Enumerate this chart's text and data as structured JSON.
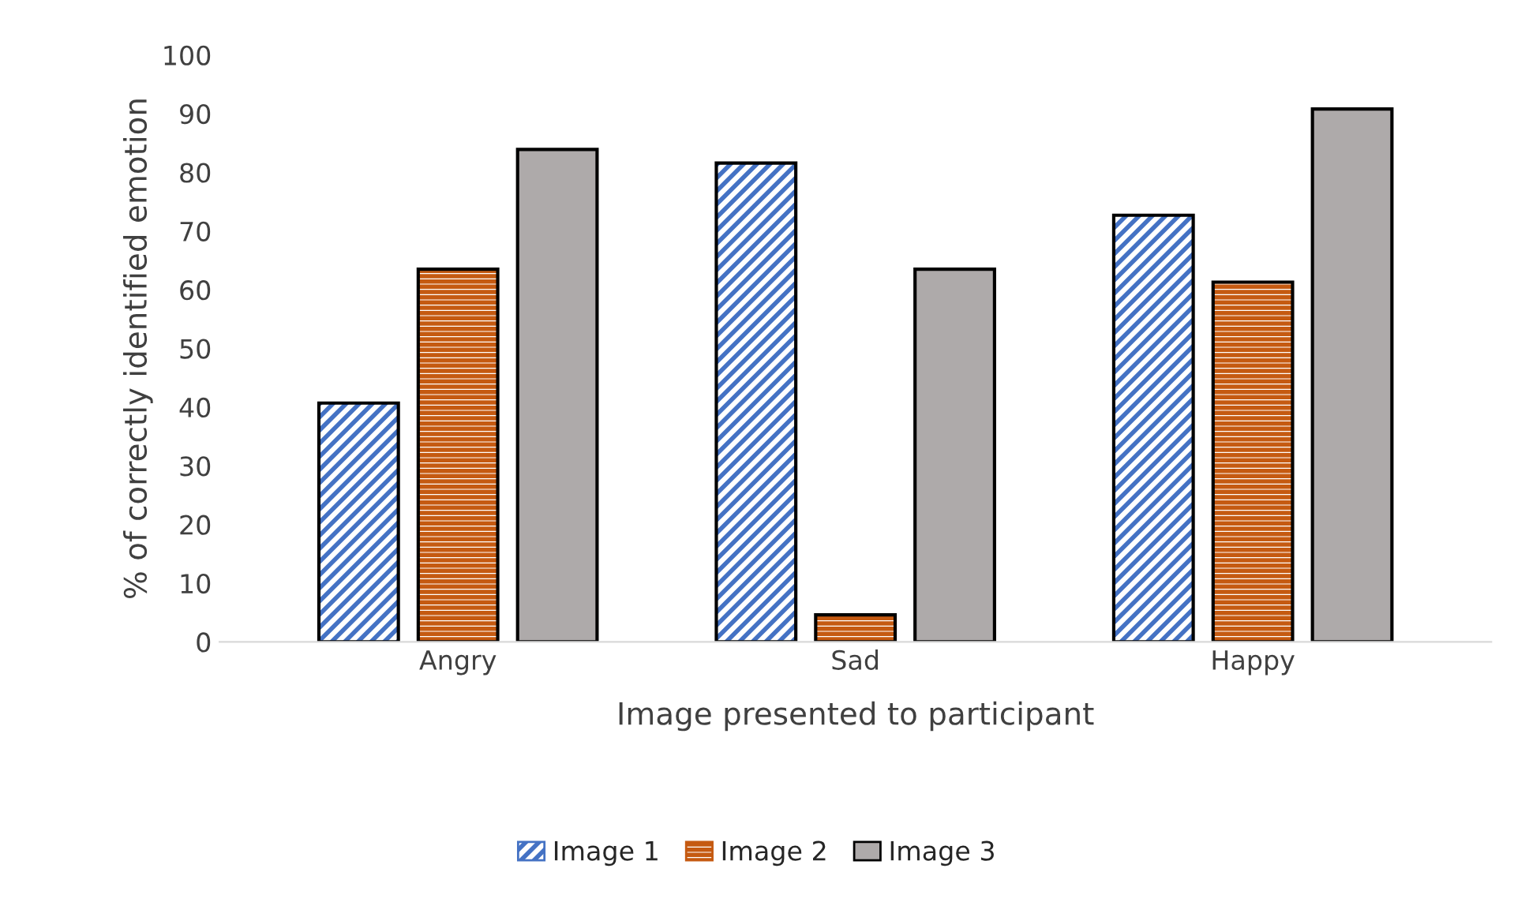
{
  "chart_data": {
    "type": "bar",
    "xlabel": "Image presented to participant",
    "ylabel": "% of correctly identified emotion",
    "categories": [
      "Angry",
      "Sad",
      "Happy"
    ],
    "series": [
      {
        "name": "Image 1",
        "color": "#4472c4",
        "values": [
          40.7,
          81.6,
          72.7
        ]
      },
      {
        "name": "Image 2",
        "color": "#c55a11",
        "values": [
          63.5,
          4.6,
          61.3
        ]
      },
      {
        "name": "Image 3",
        "color": "#aeaaaa",
        "values": [
          83.9,
          63.5,
          90.8
        ]
      }
    ],
    "ylim": [
      0,
      100
    ],
    "yticks": [
      0,
      10,
      20,
      30,
      40,
      50,
      60,
      70,
      80,
      90,
      100
    ],
    "grid": false,
    "legend": "bottom"
  }
}
